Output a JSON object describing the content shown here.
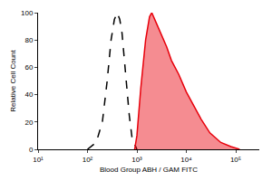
{
  "chart_data": {
    "type": "line",
    "x_label": "Blood Group ABH / GAM FITC",
    "y_label": "Relative Cell Count",
    "log": "x",
    "grid": false,
    "xlim": [
      10,
      300000
    ],
    "xticks": [
      {
        "value": 10,
        "label": "10¹"
      },
      {
        "value": 100,
        "label": "10²"
      },
      {
        "value": 1000,
        "label": "10³"
      },
      {
        "value": 10000,
        "label": "10⁴"
      },
      {
        "value": 100000,
        "label": "10⁵"
      }
    ],
    "ylim": [
      0,
      100
    ],
    "yticks": [
      0,
      20,
      40,
      60,
      80,
      100
    ],
    "series": [
      {
        "color": "#000000",
        "line_style": "dashed",
        "x": [
          100,
          150,
          200,
          250,
          300,
          350,
          400,
          450,
          500,
          600,
          700,
          800,
          1000
        ],
        "values": [
          0,
          5,
          20,
          50,
          80,
          95,
          100,
          95,
          85,
          50,
          25,
          8,
          0
        ]
      },
      {
        "color": "#e8000b",
        "type": "area",
        "line_style": "solid",
        "x": [
          900,
          1000,
          1200,
          1500,
          1800,
          2000,
          2500,
          3000,
          4000,
          5000,
          7000,
          10000,
          15000,
          20000,
          30000,
          50000,
          80000,
          120000
        ],
        "values": [
          0,
          10,
          45,
          80,
          97,
          100,
          92,
          85,
          75,
          65,
          55,
          42,
          30,
          22,
          12,
          5,
          2,
          0
        ]
      }
    ]
  }
}
